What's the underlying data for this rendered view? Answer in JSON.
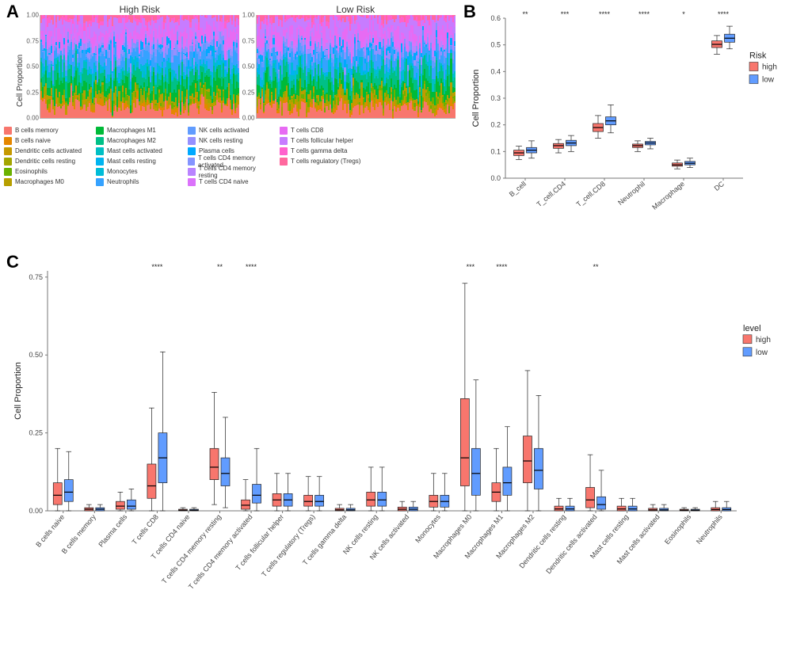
{
  "panelA": {
    "label": "A",
    "leftTitle": "High Risk",
    "rightTitle": "Low Risk",
    "yAxisTitle": "Cell Proportion",
    "yticks": [
      0.0,
      0.25,
      0.5,
      0.75,
      1.0
    ],
    "cellTypes": [
      {
        "name": "B cells memory",
        "color": "#F8766D"
      },
      {
        "name": "B cells naive",
        "color": "#E58700"
      },
      {
        "name": "Dendritic cells activated",
        "color": "#C59900"
      },
      {
        "name": "Dendritic cells resting",
        "color": "#A3A500"
      },
      {
        "name": "Eosinophils",
        "color": "#6BB100"
      },
      {
        "name": "Macrophages M0",
        "color": "#B79F00"
      },
      {
        "name": "Macrophages M1",
        "color": "#00BA38"
      },
      {
        "name": "Macrophages M2",
        "color": "#00C087"
      },
      {
        "name": "Mast cells activated",
        "color": "#00BFC4"
      },
      {
        "name": "Mast cells resting",
        "color": "#00B4F0"
      },
      {
        "name": "Monocytes",
        "color": "#00BCD8"
      },
      {
        "name": "Neutrophils",
        "color": "#35A2FF"
      },
      {
        "name": "NK cells activated",
        "color": "#619CFF"
      },
      {
        "name": "NK cells resting",
        "color": "#9590FF"
      },
      {
        "name": "Plasma cells",
        "color": "#00A9FF"
      },
      {
        "name": "T cells CD4 memory activated",
        "color": "#8494FF"
      },
      {
        "name": "T cells CD4 memory resting",
        "color": "#B983FF"
      },
      {
        "name": "T cells CD4 naive",
        "color": "#DB72FB"
      },
      {
        "name": "T cells CD8",
        "color": "#E76BF3"
      },
      {
        "name": "T cells follicular helper",
        "color": "#C77CFF"
      },
      {
        "name": "T cells gamma delta",
        "color": "#FF61CC"
      },
      {
        "name": "T cells regulatory (Tregs)",
        "color": "#FF689E"
      }
    ]
  },
  "panelB": {
    "label": "B",
    "yAxisTitle": "Cell Proportion",
    "ylim": [
      0,
      0.6
    ],
    "yticks": [
      0.0,
      0.1,
      0.2,
      0.3,
      0.4,
      0.5,
      0.6
    ],
    "legendTitle": "Risk",
    "groups": [
      {
        "name": "high",
        "color": "#F8766D"
      },
      {
        "name": "low",
        "color": "#619CFF"
      }
    ],
    "categories": [
      {
        "name": "B_cell",
        "sig": "**",
        "high": {
          "q1": 0.085,
          "med": 0.095,
          "q3": 0.105,
          "lo": 0.07,
          "hi": 0.12
        },
        "low": {
          "q1": 0.095,
          "med": 0.105,
          "q3": 0.115,
          "lo": 0.075,
          "hi": 0.14
        }
      },
      {
        "name": "T_cell.CD4",
        "sig": "***",
        "high": {
          "q1": 0.112,
          "med": 0.122,
          "q3": 0.13,
          "lo": 0.095,
          "hi": 0.145
        },
        "low": {
          "q1": 0.122,
          "med": 0.132,
          "q3": 0.142,
          "lo": 0.1,
          "hi": 0.16
        }
      },
      {
        "name": "T_cell.CD8",
        "sig": "****",
        "high": {
          "q1": 0.175,
          "med": 0.19,
          "q3": 0.205,
          "lo": 0.15,
          "hi": 0.235
        },
        "low": {
          "q1": 0.2,
          "med": 0.215,
          "q3": 0.23,
          "lo": 0.17,
          "hi": 0.275
        }
      },
      {
        "name": "Neutrophil",
        "sig": "****",
        "high": {
          "q1": 0.115,
          "med": 0.122,
          "q3": 0.128,
          "lo": 0.1,
          "hi": 0.14
        },
        "low": {
          "q1": 0.125,
          "med": 0.132,
          "q3": 0.138,
          "lo": 0.11,
          "hi": 0.15
        }
      },
      {
        "name": "Macrophage",
        "sig": "*",
        "high": {
          "q1": 0.045,
          "med": 0.05,
          "q3": 0.057,
          "lo": 0.035,
          "hi": 0.068
        },
        "low": {
          "q1": 0.05,
          "med": 0.056,
          "q3": 0.063,
          "lo": 0.04,
          "hi": 0.075
        }
      },
      {
        "name": "DC",
        "sig": "****",
        "high": {
          "q1": 0.49,
          "med": 0.502,
          "q3": 0.515,
          "lo": 0.465,
          "hi": 0.535
        },
        "low": {
          "q1": 0.51,
          "med": 0.525,
          "q3": 0.54,
          "lo": 0.485,
          "hi": 0.57
        }
      }
    ]
  },
  "panelC": {
    "label": "C",
    "yAxisTitle": "Cell Proportion",
    "ylim": [
      0,
      0.77
    ],
    "yticks": [
      0.0,
      0.25,
      0.5,
      0.75
    ],
    "legendTitle": "level",
    "groups": [
      {
        "name": "high",
        "color": "#F8766D"
      },
      {
        "name": "low",
        "color": "#619CFF"
      }
    ],
    "categories": [
      {
        "name": "B cells naive",
        "sig": "",
        "high": {
          "q1": 0.02,
          "med": 0.05,
          "q3": 0.09,
          "lo": 0.0,
          "hi": 0.2
        },
        "low": {
          "q1": 0.03,
          "med": 0.06,
          "q3": 0.1,
          "lo": 0.0,
          "hi": 0.19
        }
      },
      {
        "name": "B cells memory",
        "sig": "",
        "high": {
          "q1": 0.0,
          "med": 0.005,
          "q3": 0.01,
          "lo": 0.0,
          "hi": 0.02
        },
        "low": {
          "q1": 0.0,
          "med": 0.005,
          "q3": 0.01,
          "lo": 0.0,
          "hi": 0.02
        }
      },
      {
        "name": "Plasma cells",
        "sig": "",
        "high": {
          "q1": 0.005,
          "med": 0.015,
          "q3": 0.03,
          "lo": 0.0,
          "hi": 0.06
        },
        "low": {
          "q1": 0.005,
          "med": 0.015,
          "q3": 0.035,
          "lo": 0.0,
          "hi": 0.07
        }
      },
      {
        "name": "T cells CD8",
        "sig": "****",
        "high": {
          "q1": 0.04,
          "med": 0.08,
          "q3": 0.15,
          "lo": 0.0,
          "hi": 0.33
        },
        "low": {
          "q1": 0.09,
          "med": 0.17,
          "q3": 0.25,
          "lo": 0.0,
          "hi": 0.51
        }
      },
      {
        "name": "T cells CD4 naive",
        "sig": "",
        "high": {
          "q1": 0.0,
          "med": 0.002,
          "q3": 0.005,
          "lo": 0.0,
          "hi": 0.01
        },
        "low": {
          "q1": 0.0,
          "med": 0.002,
          "q3": 0.005,
          "lo": 0.0,
          "hi": 0.01
        }
      },
      {
        "name": "T cells CD4 memory resting",
        "sig": "**",
        "high": {
          "q1": 0.1,
          "med": 0.14,
          "q3": 0.2,
          "lo": 0.02,
          "hi": 0.38
        },
        "low": {
          "q1": 0.08,
          "med": 0.12,
          "q3": 0.17,
          "lo": 0.01,
          "hi": 0.3
        }
      },
      {
        "name": "T cells CD4 memory activated",
        "sig": "****",
        "high": {
          "q1": 0.005,
          "med": 0.018,
          "q3": 0.035,
          "lo": 0.0,
          "hi": 0.1
        },
        "low": {
          "q1": 0.025,
          "med": 0.05,
          "q3": 0.085,
          "lo": 0.0,
          "hi": 0.2
        }
      },
      {
        "name": "T cells follicular helper",
        "sig": "",
        "high": {
          "q1": 0.015,
          "med": 0.035,
          "q3": 0.055,
          "lo": 0.0,
          "hi": 0.12
        },
        "low": {
          "q1": 0.015,
          "med": 0.035,
          "q3": 0.055,
          "lo": 0.0,
          "hi": 0.12
        }
      },
      {
        "name": "T cells regulatory (Tregs)",
        "sig": "",
        "high": {
          "q1": 0.015,
          "med": 0.03,
          "q3": 0.05,
          "lo": 0.0,
          "hi": 0.11
        },
        "low": {
          "q1": 0.015,
          "med": 0.03,
          "q3": 0.05,
          "lo": 0.0,
          "hi": 0.11
        }
      },
      {
        "name": "T cells gamma delta",
        "sig": "",
        "high": {
          "q1": 0.0,
          "med": 0.003,
          "q3": 0.008,
          "lo": 0.0,
          "hi": 0.02
        },
        "low": {
          "q1": 0.0,
          "med": 0.003,
          "q3": 0.008,
          "lo": 0.0,
          "hi": 0.02
        }
      },
      {
        "name": "NK cells resting",
        "sig": "",
        "high": {
          "q1": 0.015,
          "med": 0.035,
          "q3": 0.06,
          "lo": 0.0,
          "hi": 0.14
        },
        "low": {
          "q1": 0.015,
          "med": 0.035,
          "q3": 0.06,
          "lo": 0.0,
          "hi": 0.14
        }
      },
      {
        "name": "NK cells activated",
        "sig": "",
        "high": {
          "q1": 0.0,
          "med": 0.005,
          "q3": 0.012,
          "lo": 0.0,
          "hi": 0.03
        },
        "low": {
          "q1": 0.0,
          "med": 0.005,
          "q3": 0.012,
          "lo": 0.0,
          "hi": 0.03
        }
      },
      {
        "name": "Monocytes",
        "sig": "",
        "high": {
          "q1": 0.012,
          "med": 0.03,
          "q3": 0.05,
          "lo": 0.0,
          "hi": 0.12
        },
        "low": {
          "q1": 0.012,
          "med": 0.03,
          "q3": 0.05,
          "lo": 0.0,
          "hi": 0.12
        }
      },
      {
        "name": "Macrophages M0",
        "sig": "***",
        "high": {
          "q1": 0.08,
          "med": 0.17,
          "q3": 0.36,
          "lo": 0.0,
          "hi": 0.73
        },
        "low": {
          "q1": 0.05,
          "med": 0.12,
          "q3": 0.2,
          "lo": 0.0,
          "hi": 0.42
        }
      },
      {
        "name": "Macrophages M1",
        "sig": "****",
        "high": {
          "q1": 0.03,
          "med": 0.06,
          "q3": 0.09,
          "lo": 0.0,
          "hi": 0.2
        },
        "low": {
          "q1": 0.05,
          "med": 0.09,
          "q3": 0.14,
          "lo": 0.0,
          "hi": 0.27
        }
      },
      {
        "name": "Macrophages M2",
        "sig": "",
        "high": {
          "q1": 0.09,
          "med": 0.16,
          "q3": 0.24,
          "lo": 0.0,
          "hi": 0.45
        },
        "low": {
          "q1": 0.07,
          "med": 0.13,
          "q3": 0.2,
          "lo": 0.0,
          "hi": 0.37
        }
      },
      {
        "name": "Dendritic cells resting",
        "sig": "",
        "high": {
          "q1": 0.0,
          "med": 0.006,
          "q3": 0.015,
          "lo": 0.0,
          "hi": 0.04
        },
        "low": {
          "q1": 0.0,
          "med": 0.006,
          "q3": 0.015,
          "lo": 0.0,
          "hi": 0.04
        }
      },
      {
        "name": "Dendritic cells activated",
        "sig": "**",
        "high": {
          "q1": 0.01,
          "med": 0.035,
          "q3": 0.075,
          "lo": 0.0,
          "hi": 0.18
        },
        "low": {
          "q1": 0.005,
          "med": 0.02,
          "q3": 0.045,
          "lo": 0.0,
          "hi": 0.13
        }
      },
      {
        "name": "Mast cells resting",
        "sig": "",
        "high": {
          "q1": 0.0,
          "med": 0.006,
          "q3": 0.015,
          "lo": 0.0,
          "hi": 0.04
        },
        "low": {
          "q1": 0.0,
          "med": 0.006,
          "q3": 0.015,
          "lo": 0.0,
          "hi": 0.04
        }
      },
      {
        "name": "Mast cells activated",
        "sig": "",
        "high": {
          "q1": 0.0,
          "med": 0.003,
          "q3": 0.008,
          "lo": 0.0,
          "hi": 0.02
        },
        "low": {
          "q1": 0.0,
          "med": 0.003,
          "q3": 0.008,
          "lo": 0.0,
          "hi": 0.02
        }
      },
      {
        "name": "Eosinophils",
        "sig": "",
        "high": {
          "q1": 0.0,
          "med": 0.002,
          "q3": 0.005,
          "lo": 0.0,
          "hi": 0.01
        },
        "low": {
          "q1": 0.0,
          "med": 0.002,
          "q3": 0.005,
          "lo": 0.0,
          "hi": 0.01
        }
      },
      {
        "name": "Neutrophils",
        "sig": "",
        "high": {
          "q1": 0.0,
          "med": 0.004,
          "q3": 0.01,
          "lo": 0.0,
          "hi": 0.03
        },
        "low": {
          "q1": 0.0,
          "med": 0.004,
          "q3": 0.01,
          "lo": 0.0,
          "hi": 0.03
        }
      }
    ]
  }
}
